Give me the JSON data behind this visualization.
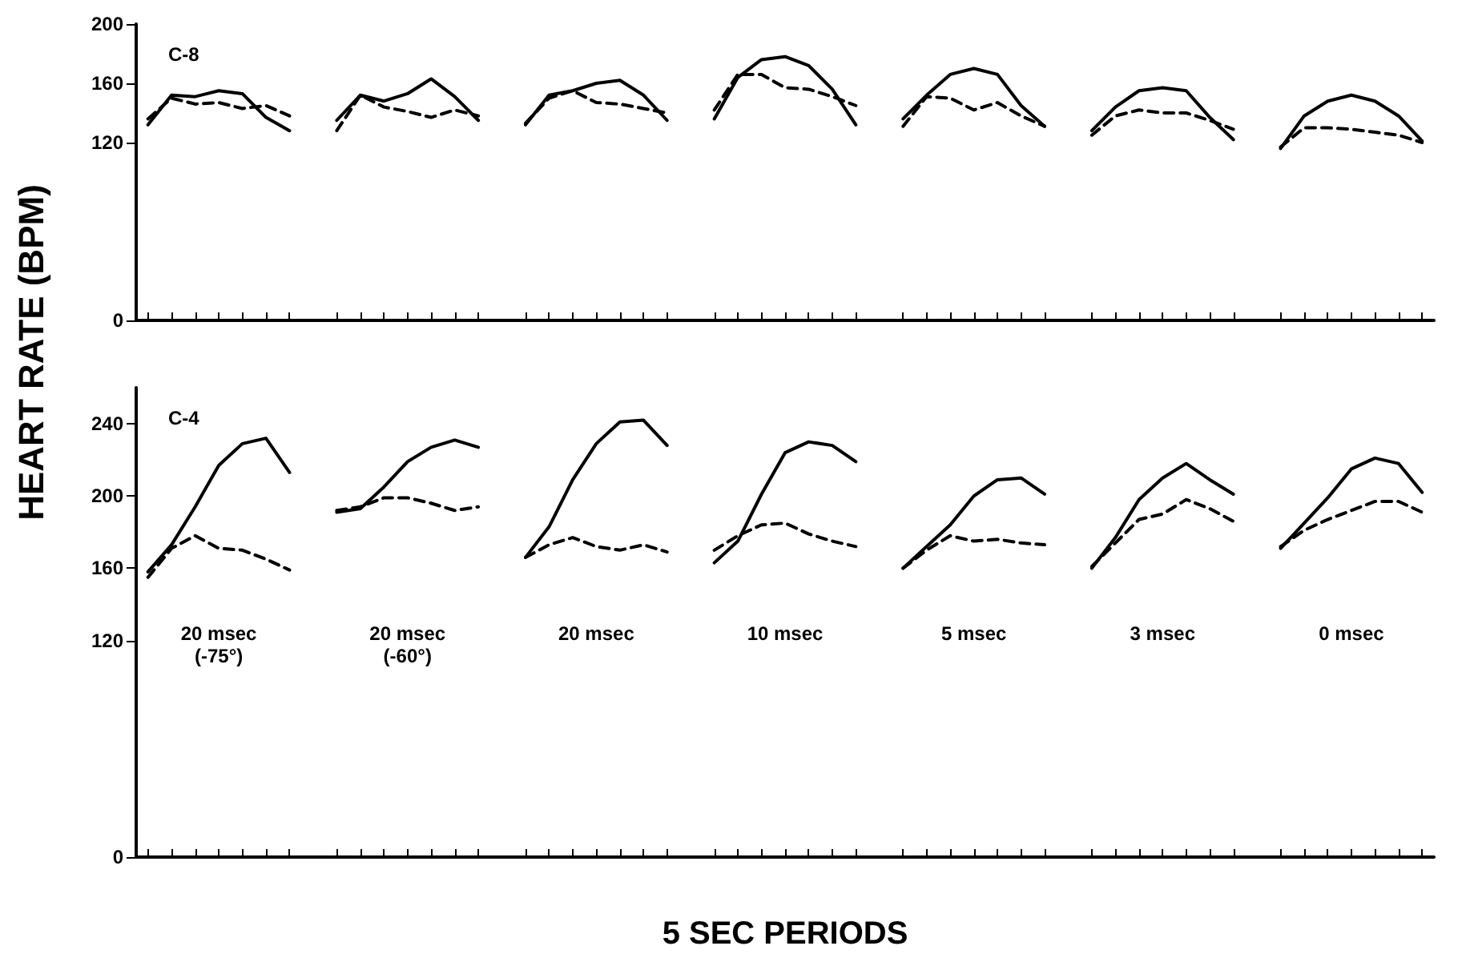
{
  "chart_data": [
    {
      "type": "line",
      "title": "C-8",
      "categories": [
        null,
        null,
        null,
        null,
        null,
        null,
        null,
        null,
        null,
        null,
        null,
        null,
        null,
        null,
        null,
        null,
        null,
        null,
        null,
        null,
        null,
        null,
        null,
        null,
        null,
        null,
        null,
        null,
        null,
        null,
        null,
        null,
        null,
        null,
        null,
        null,
        null,
        null,
        null,
        null,
        null,
        null,
        null,
        null,
        null,
        null,
        null,
        null,
        null,
        null,
        null,
        null,
        null,
        null,
        null
      ],
      "series": [
        {
          "color": "#000000",
          "line_style": "solid",
          "values": [
            132,
            152,
            151,
            155,
            153,
            137,
            128,
            null,
            135,
            152,
            148,
            153,
            163,
            151,
            135,
            null,
            132,
            152,
            155,
            160,
            162,
            152,
            135,
            null,
            136,
            164,
            176,
            178,
            172,
            156,
            132,
            null,
            136,
            152,
            166,
            170,
            166,
            145,
            131,
            null,
            128,
            144,
            155,
            157,
            155,
            137,
            122,
            null,
            116,
            138,
            148,
            152,
            148,
            138,
            121
          ]
        },
        {
          "color": "#000000",
          "line_style": "dashed",
          "values": [
            136,
            150,
            146,
            147,
            143,
            145,
            138,
            null,
            128,
            152,
            144,
            141,
            137,
            142,
            138,
            null,
            133,
            150,
            155,
            147,
            146,
            143,
            140,
            null,
            142,
            166,
            166,
            157,
            156,
            151,
            145,
            null,
            131,
            151,
            150,
            142,
            147,
            138,
            131,
            null,
            125,
            138,
            142,
            140,
            140,
            135,
            129,
            null,
            117,
            130,
            130,
            129,
            127,
            125,
            120
          ]
        }
      ],
      "ylim": [
        0,
        200
      ],
      "yticks": [
        0,
        120,
        160,
        200
      ],
      "tick_labels": "y"
    },
    {
      "type": "line",
      "title": "C-4",
      "xlabel": "5 SEC PERIODS",
      "ylabel": "HEART RATE (BPM)",
      "categories": [
        null,
        null,
        null,
        null,
        null,
        null,
        null,
        null,
        null,
        null,
        null,
        null,
        null,
        null,
        null,
        null,
        null,
        null,
        null,
        null,
        null,
        null,
        null,
        null,
        null,
        null,
        null,
        null,
        null,
        null,
        null,
        null,
        null,
        null,
        null,
        null,
        null,
        null,
        null,
        null,
        null,
        null,
        null,
        null,
        null,
        null,
        null,
        null,
        null,
        null,
        null,
        null,
        null,
        null,
        null
      ],
      "series": [
        {
          "color": "#000000",
          "line_style": "solid",
          "values": [
            158,
            173,
            194,
            217,
            229,
            232,
            213,
            null,
            191,
            193,
            205,
            219,
            227,
            231,
            227,
            null,
            166,
            183,
            209,
            229,
            241,
            242,
            228,
            null,
            163,
            175,
            201,
            224,
            230,
            228,
            219,
            null,
            160,
            172,
            184,
            200,
            209,
            210,
            201,
            null,
            160,
            177,
            198,
            210,
            218,
            209,
            201,
            null,
            171,
            185,
            199,
            215,
            221,
            218,
            202
          ]
        },
        {
          "color": "#000000",
          "line_style": "dashed",
          "values": [
            155,
            171,
            178,
            171,
            170,
            165,
            159,
            null,
            192,
            194,
            199,
            199,
            196,
            192,
            194,
            null,
            166,
            173,
            177,
            172,
            170,
            173,
            169,
            null,
            170,
            178,
            184,
            185,
            179,
            175,
            172,
            null,
            160,
            170,
            178,
            175,
            176,
            174,
            173,
            null,
            161,
            174,
            187,
            190,
            198,
            193,
            186,
            null,
            172,
            181,
            187,
            192,
            197,
            197,
            191
          ]
        }
      ],
      "annotations": [
        "20 msec\n(-75°)",
        "20 msec\n(-60°)",
        "20 msec",
        "10 msec",
        "5 msec",
        "3 msec",
        "0 msec"
      ],
      "ylim": [
        0,
        260
      ],
      "yticks": [
        0,
        120,
        160,
        200,
        240
      ],
      "tick_labels": "y"
    }
  ]
}
